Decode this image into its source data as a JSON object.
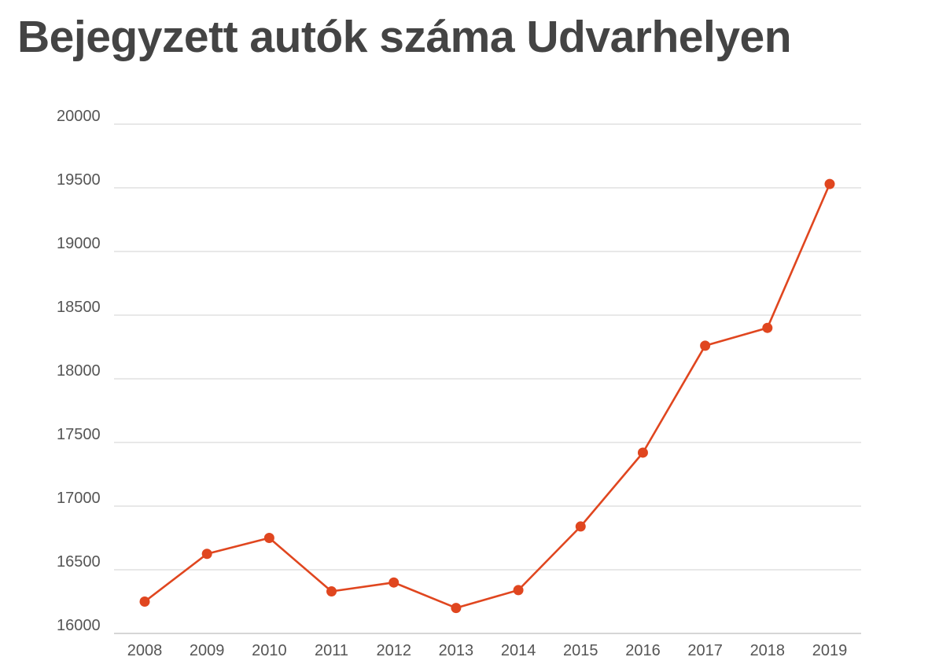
{
  "title": "Bejegyzett autók száma Udvarhelyen",
  "colors": {
    "line": "#e0461f",
    "grid": "#d9d9d9",
    "title": "#444444",
    "tick": "#555555"
  },
  "chart_data": {
    "type": "line",
    "title": "Bejegyzett autók száma Udvarhelyen",
    "xlabel": "",
    "ylabel": "",
    "categories": [
      "2008",
      "2009",
      "2010",
      "2011",
      "2012",
      "2013",
      "2014",
      "2015",
      "2016",
      "2017",
      "2018",
      "2019"
    ],
    "series": [
      {
        "values": [
          16250,
          16625,
          16750,
          16330,
          16400,
          16200,
          16340,
          16840,
          17420,
          18260,
          18400,
          19530
        ]
      }
    ],
    "ylim": [
      16000,
      20000
    ],
    "yticks": [
      16000,
      16500,
      17000,
      17500,
      18000,
      18500,
      19000,
      19500,
      20000
    ],
    "grid": true,
    "legend": "none"
  }
}
